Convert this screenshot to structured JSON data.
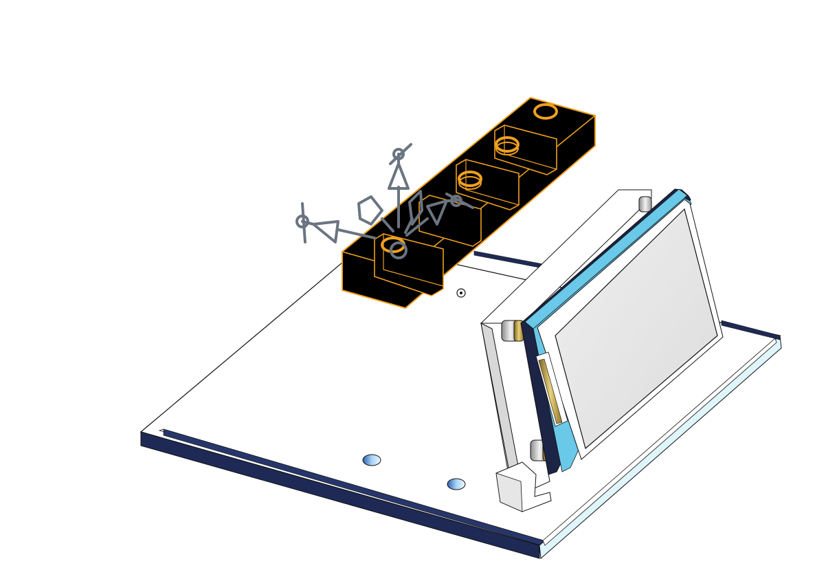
{
  "viewport": {
    "background": "#ffffff"
  },
  "model": {
    "parts": [
      {
        "name": "base-plate",
        "selected": false
      },
      {
        "name": "front-rail",
        "selected": false
      },
      {
        "name": "side-rail",
        "selected": false
      },
      {
        "name": "display-bracket",
        "selected": false
      },
      {
        "name": "lcd-display-module",
        "selected": false
      },
      {
        "name": "terminal-block",
        "selected": true
      }
    ],
    "colors": {
      "selection_highlight": "#f0a020",
      "selected_body": "#000000",
      "rail_dark": "#1e2a55",
      "rail_light": "#dff5fb",
      "pcb_edge": "#6ac8e8",
      "screen": "#e3e3e3",
      "triad": "#6b7480",
      "hole": "#4a8fd8"
    }
  },
  "triad": {
    "icon": "move-triad-icon",
    "handles": [
      "x-axis-handle",
      "y-axis-handle",
      "z-axis-handle",
      "xy-plane-handle",
      "yz-plane-handle",
      "rotate-ring-handle"
    ]
  }
}
